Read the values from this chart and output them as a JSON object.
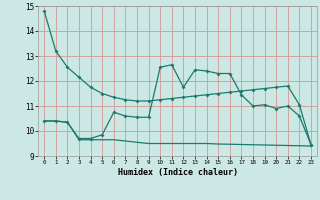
{
  "xlabel": "Humidex (Indice chaleur)",
  "xlim": [
    -0.5,
    23.5
  ],
  "ylim": [
    9,
    15
  ],
  "xticks": [
    0,
    1,
    2,
    3,
    4,
    5,
    6,
    7,
    8,
    9,
    10,
    11,
    12,
    13,
    14,
    15,
    16,
    17,
    18,
    19,
    20,
    21,
    22,
    23
  ],
  "yticks": [
    9,
    10,
    11,
    12,
    13,
    14,
    15
  ],
  "bg_color": "#cce8e4",
  "grid_color": "#d49898",
  "line_color": "#1a7a6e",
  "line1_x": [
    0,
    1,
    2,
    3,
    4,
    5,
    6,
    7,
    8,
    9,
    10,
    11,
    12,
    13,
    14,
    15,
    16,
    17,
    18,
    19,
    20,
    21,
    22,
    23
  ],
  "line1_y": [
    14.8,
    13.2,
    12.55,
    12.15,
    11.75,
    11.5,
    11.35,
    11.25,
    11.2,
    11.2,
    11.25,
    11.3,
    11.35,
    11.4,
    11.45,
    11.5,
    11.55,
    11.6,
    11.65,
    11.7,
    11.75,
    11.8,
    11.05,
    9.45
  ],
  "line2_x": [
    0,
    1,
    2,
    3,
    4,
    5,
    6,
    7,
    8,
    9,
    10,
    11,
    12,
    13,
    14,
    15,
    16,
    17,
    18,
    19,
    20,
    21,
    22,
    23
  ],
  "line2_y": [
    10.4,
    10.4,
    10.35,
    9.7,
    9.7,
    9.85,
    10.75,
    10.6,
    10.55,
    10.55,
    12.55,
    12.65,
    11.75,
    12.45,
    12.4,
    12.3,
    12.3,
    11.45,
    11.0,
    11.05,
    10.9,
    11.0,
    10.6,
    9.45
  ],
  "line3_x": [
    0,
    1,
    2,
    3,
    4,
    5,
    6,
    7,
    8,
    9,
    10,
    11,
    12,
    13,
    14,
    15,
    16,
    17,
    18,
    19,
    20,
    21,
    22,
    23
  ],
  "line3_y": [
    10.4,
    10.4,
    10.35,
    9.65,
    9.65,
    9.65,
    9.65,
    9.6,
    9.55,
    9.5,
    9.5,
    9.5,
    9.5,
    9.5,
    9.5,
    9.48,
    9.47,
    9.46,
    9.45,
    9.44,
    9.43,
    9.42,
    9.41,
    9.4
  ]
}
